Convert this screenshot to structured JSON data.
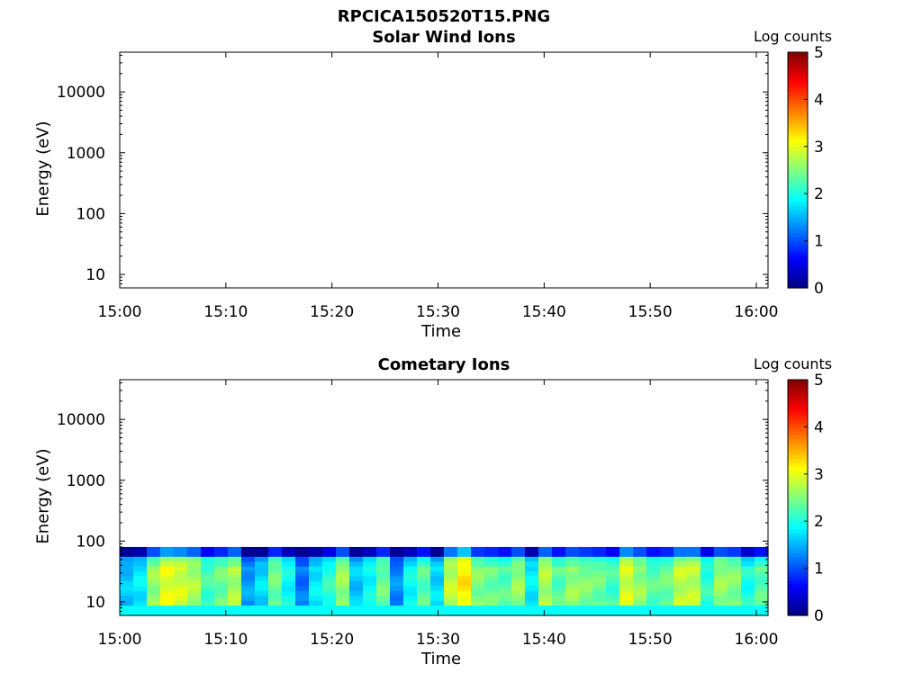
{
  "figure": {
    "title": "RPCICA150520T15.PNG"
  },
  "chart_data": [
    {
      "type": "heatmap",
      "title": "Solar Wind Ions",
      "xlabel": "Time",
      "ylabel": "Energy (eV)",
      "x_ticks": [
        "15:00",
        "15:10",
        "15:20",
        "15:30",
        "15:40",
        "15:50",
        "16:00"
      ],
      "y_scale": "log",
      "y_ticks": [
        10,
        100,
        1000,
        10000
      ],
      "ylim": [
        6,
        45000
      ],
      "colorbar": {
        "label": "Log counts",
        "range": [
          0,
          5
        ],
        "ticks": [
          0,
          1,
          2,
          3,
          4,
          5
        ],
        "colormap": "jet"
      },
      "data": "no data shown (blank panel)"
    },
    {
      "type": "heatmap",
      "title": "Cometary Ions",
      "xlabel": "Time",
      "ylabel": "Energy (eV)",
      "x_ticks": [
        "15:00",
        "15:10",
        "15:20",
        "15:30",
        "15:40",
        "15:50",
        "16:00"
      ],
      "y_scale": "log",
      "y_ticks": [
        10,
        100,
        1000,
        10000
      ],
      "ylim": [
        6,
        45000
      ],
      "energy_range_filled": [
        6,
        80
      ],
      "colorbar": {
        "label": "Log counts",
        "range": [
          0,
          5
        ],
        "ticks": [
          0,
          1,
          2,
          3,
          4,
          5
        ],
        "colormap": "jet"
      },
      "time_columns_log_counts_mid_energy": [
        1.6,
        1.8,
        2.6,
        3.0,
        2.9,
        2.7,
        2.2,
        2.4,
        2.7,
        1.4,
        1.7,
        2.4,
        1.9,
        1.2,
        1.8,
        2.1,
        2.6,
        1.6,
        1.9,
        2.4,
        1.3,
        1.9,
        2.3,
        1.7,
        2.8,
        3.2,
        2.5,
        2.4,
        2.3,
        2.6,
        1.8,
        2.7,
        2.3,
        2.6,
        2.5,
        2.4,
        2.2,
        2.9,
        2.6,
        2.3,
        2.4,
        2.8,
        2.8,
        2.1,
        2.6,
        2.5,
        2.0,
        2.3
      ]
    }
  ]
}
